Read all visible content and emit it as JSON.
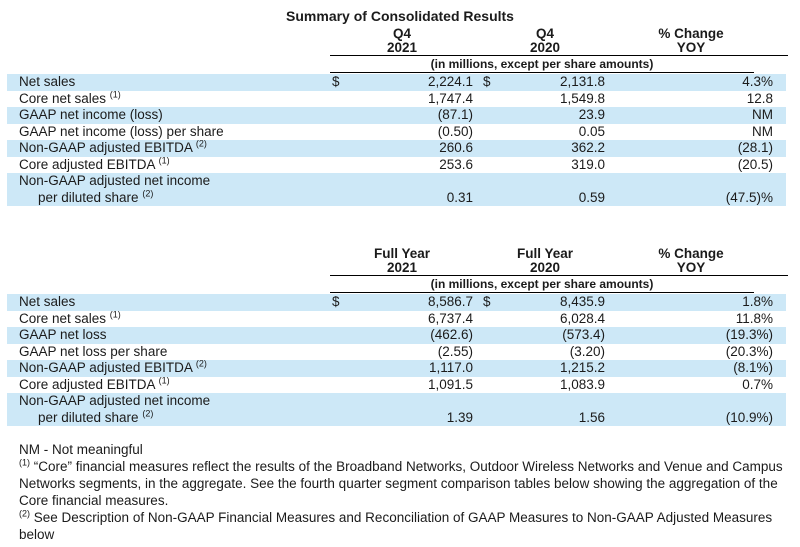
{
  "title": "Summary of Consolidated Results",
  "units_note": "(in millions, except per share amounts)",
  "colors": {
    "row_highlight": "#cde8f7"
  },
  "tables": [
    {
      "columns": [
        {
          "line1": "Q4",
          "line2": "2021"
        },
        {
          "line1": "Q4",
          "line2": "2020"
        },
        {
          "line1": "% Change",
          "line2": "YOY"
        }
      ],
      "rows": [
        {
          "label": "Net sales",
          "dollar1": "$",
          "v1": "2,224.1",
          "dollar2": "$",
          "v2": "2,131.8",
          "change": "4.3%",
          "highlight": true
        },
        {
          "label": "Core net sales",
          "sup": "(1)",
          "v1": "1,747.4",
          "v2": "1,549.8",
          "change": "12.8",
          "highlight": false
        },
        {
          "label": "GAAP net income (loss)",
          "v1": "(87.1)",
          "v2": "23.9",
          "change": "NM",
          "highlight": true
        },
        {
          "label": "GAAP net income (loss) per share",
          "v1": "(0.50)",
          "v2": "0.05",
          "change": "NM",
          "highlight": false
        },
        {
          "label": "Non-GAAP adjusted EBITDA",
          "sup": "(2)",
          "v1": "260.6",
          "v2": "362.2",
          "change": "(28.1)",
          "highlight": true
        },
        {
          "label": "Core adjusted EBITDA",
          "sup": "(1)",
          "v1": "253.6",
          "v2": "319.0",
          "change": "(20.5)",
          "highlight": false
        },
        {
          "label": "Non-GAAP adjusted net income",
          "label2": "per diluted share",
          "sup2": "(2)",
          "v1": "0.31",
          "v2": "0.59",
          "change": "(47.5)%",
          "highlight": true
        }
      ]
    },
    {
      "columns": [
        {
          "line1": "Full Year",
          "line2": "2021"
        },
        {
          "line1": "Full Year",
          "line2": "2020"
        },
        {
          "line1": "% Change",
          "line2": "YOY"
        }
      ],
      "rows": [
        {
          "label": "Net sales",
          "dollar1": "$",
          "v1": "8,586.7",
          "dollar2": "$",
          "v2": "8,435.9",
          "change": "1.8%",
          "highlight": true
        },
        {
          "label": "Core net sales",
          "sup": "(1)",
          "v1": "6,737.4",
          "v2": "6,028.4",
          "change": "11.8%",
          "highlight": false
        },
        {
          "label": "GAAP net loss",
          "v1": "(462.6)",
          "v2": "(573.4)",
          "change": "(19.3%)",
          "highlight": true
        },
        {
          "label": "GAAP net loss per share",
          "v1": "(2.55)",
          "v2": "(3.20)",
          "change": "(20.3%)",
          "highlight": false
        },
        {
          "label": "Non-GAAP adjusted EBITDA",
          "sup": "(2)",
          "v1": "1,117.0",
          "v2": "1,215.2",
          "change": "(8.1%)",
          "highlight": true
        },
        {
          "label": "Core adjusted EBITDA",
          "sup": "(1)",
          "v1": "1,091.5",
          "v2": "1,083.9",
          "change": "0.7%",
          "highlight": false
        },
        {
          "label": "Non-GAAP adjusted net income",
          "label2": "per diluted share",
          "sup2": "(2)",
          "v1": "1.39",
          "v2": "1.56",
          "change": "(10.9%)",
          "highlight": true
        }
      ]
    }
  ],
  "footnotes": [
    {
      "marker": "",
      "text": "NM - Not meaningful"
    },
    {
      "marker": "(1)",
      "text": "“Core” financial measures reflect the results of the Broadband Networks, Outdoor Wireless Networks and Venue and Campus Networks segments, in the aggregate. See the fourth quarter segment comparison tables below showing the aggregation of the Core financial measures."
    },
    {
      "marker": "(2)",
      "text": "See Description of Non-GAAP Financial Measures and Reconciliation of GAAP Measures to Non-GAAP Adjusted Measures below"
    }
  ]
}
